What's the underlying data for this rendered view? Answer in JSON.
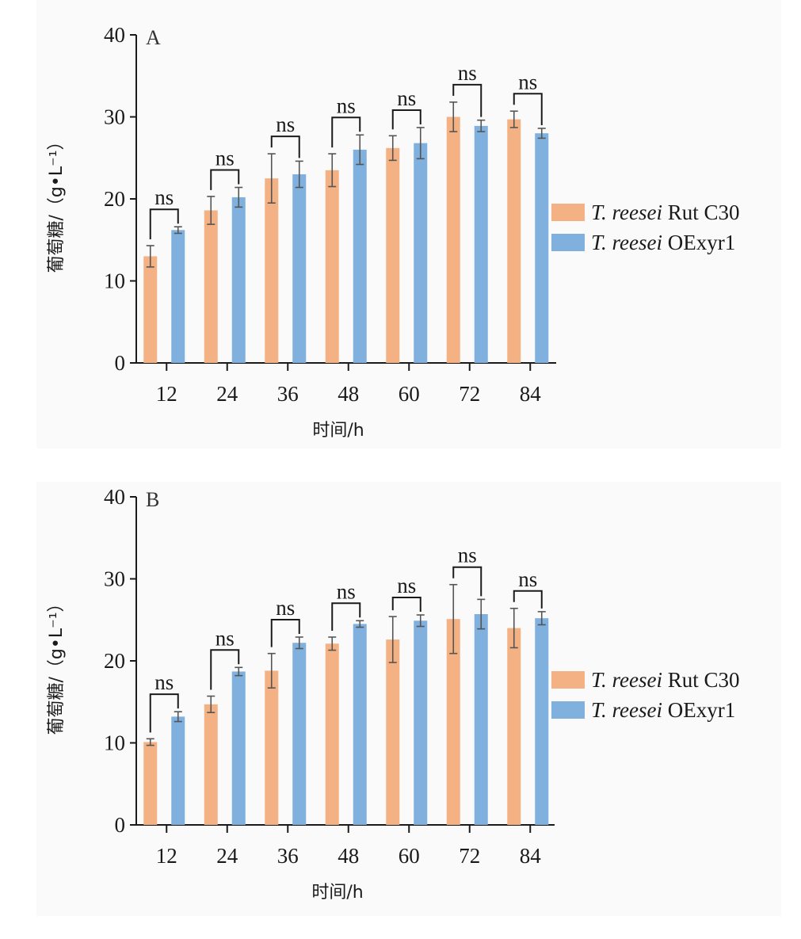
{
  "chart_data": [
    {
      "type": "bar",
      "panel_label": "A",
      "title": "",
      "xlabel": "时间/h",
      "ylabel": "葡萄糖/（g•L⁻¹）",
      "ylim": [
        0,
        40
      ],
      "yticks": [
        0,
        10,
        20,
        30,
        40
      ],
      "categories": [
        "12",
        "24",
        "36",
        "48",
        "60",
        "72",
        "84"
      ],
      "series": [
        {
          "name": "T. reesei Rut C30",
          "name_italic": "T. reesei",
          "name_roman": " Rut C30",
          "color": "#f4b183",
          "values": [
            13.0,
            18.6,
            22.5,
            23.5,
            26.2,
            30.0,
            29.7
          ],
          "errors": [
            1.3,
            1.7,
            3.0,
            2.0,
            1.5,
            1.8,
            1.0
          ]
        },
        {
          "name": "T. reesei OExyr1",
          "name_italic": "T. reesei",
          "name_roman": " OExyr1",
          "color": "#7fb0de",
          "values": [
            16.2,
            20.2,
            23.0,
            26.0,
            26.8,
            28.9,
            28.0
          ],
          "errors": [
            0.4,
            1.2,
            1.6,
            1.8,
            1.9,
            0.7,
            0.6
          ]
        }
      ],
      "annotations": [
        "ns",
        "ns",
        "ns",
        "ns",
        "ns",
        "ns",
        "ns"
      ],
      "legend_position": "right"
    },
    {
      "type": "bar",
      "panel_label": "B",
      "title": "",
      "xlabel": "时间/h",
      "ylabel": "葡萄糖/（g•L⁻¹）",
      "ylim": [
        0,
        40
      ],
      "yticks": [
        0,
        10,
        20,
        30,
        40
      ],
      "categories": [
        "12",
        "24",
        "36",
        "48",
        "60",
        "72",
        "84"
      ],
      "series": [
        {
          "name": "T. reesei Rut C30",
          "name_italic": "T. reesei",
          "name_roman": " Rut C30",
          "color": "#f4b183",
          "values": [
            10.1,
            14.7,
            18.8,
            22.1,
            22.6,
            25.1,
            24.0
          ],
          "errors": [
            0.4,
            1.0,
            2.1,
            0.8,
            2.8,
            4.2,
            2.4
          ]
        },
        {
          "name": "T. reesei OExyr1",
          "name_italic": "T. reesei",
          "name_roman": " OExyr1",
          "color": "#7fb0de",
          "values": [
            13.2,
            18.7,
            22.2,
            24.5,
            24.9,
            25.7,
            25.2
          ],
          "errors": [
            0.6,
            0.5,
            0.7,
            0.4,
            0.7,
            1.8,
            0.8
          ]
        }
      ],
      "annotations": [
        "ns",
        "ns",
        "ns",
        "ns",
        "ns",
        "ns",
        "ns"
      ],
      "legend_position": "right"
    }
  ]
}
